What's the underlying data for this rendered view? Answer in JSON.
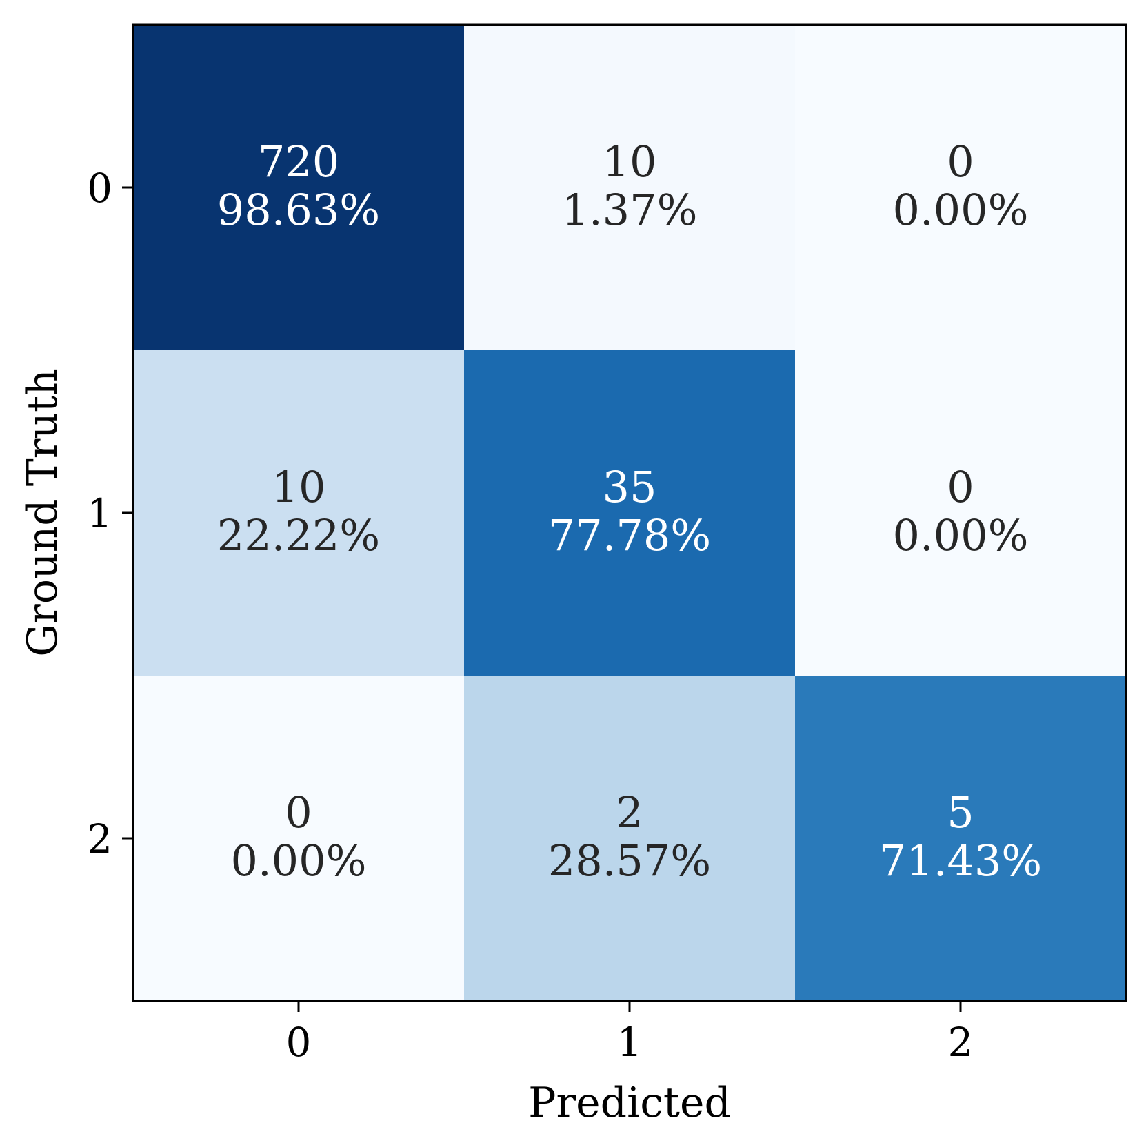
{
  "chart_data": {
    "type": "heatmap",
    "xlabel": "Predicted",
    "ylabel": "Ground Truth",
    "x_categories": [
      "0",
      "1",
      "2"
    ],
    "y_categories": [
      "0",
      "1",
      "2"
    ],
    "counts": [
      [
        720,
        10,
        0
      ],
      [
        10,
        35,
        0
      ],
      [
        0,
        2,
        5
      ]
    ],
    "percent_labels": [
      [
        "98.63%",
        "1.37%",
        "0.00%"
      ],
      [
        "22.22%",
        "77.78%",
        "0.00%"
      ],
      [
        "0.00%",
        "28.57%",
        "71.43%"
      ]
    ],
    "color_scale": "Blues",
    "color_low": "#f7fbff",
    "color_high": "#08306b",
    "text_dark": "#262626",
    "text_light": "#ffffff"
  }
}
